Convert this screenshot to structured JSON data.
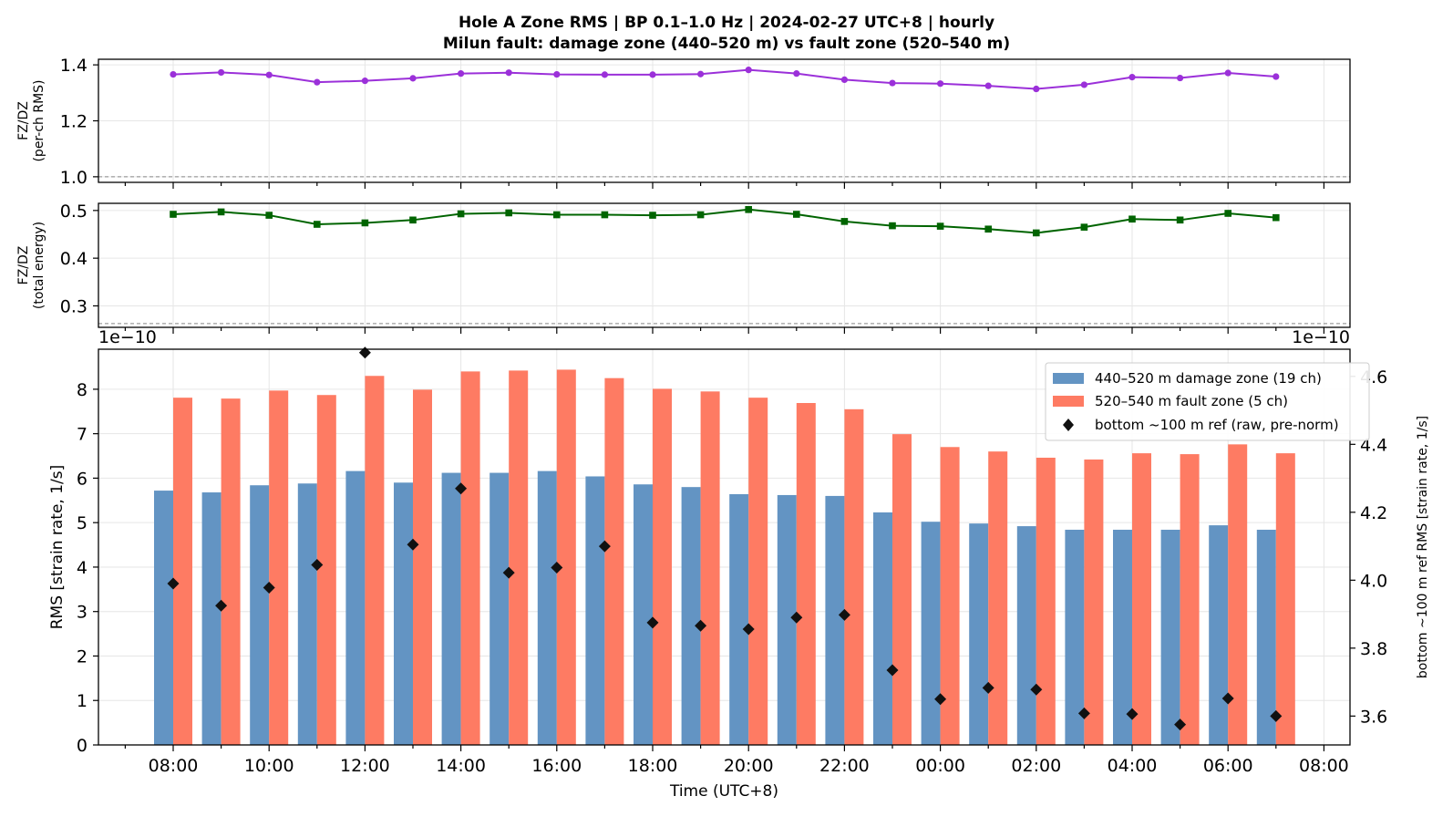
{
  "title_line1": "Hole A Zone RMS  |  BP 0.1–1.0 Hz  |  2024-02-27 UTC+8  |  hourly",
  "title_line2": "Milun fault: damage zone (440–520 m) vs fault zone (520–540 m)",
  "chart_data": [
    {
      "type": "line",
      "ylabel_line1": "FZ/DZ",
      "ylabel_line2": "(per-ch RMS)",
      "ylim": [
        0.98,
        1.42
      ],
      "yticks": [
        1.0,
        1.2,
        1.4
      ],
      "yticklabels": [
        "1.0",
        "1.2",
        "1.4"
      ],
      "reference_line": 1.0,
      "grid": true,
      "series": [
        {
          "color": "#9b30d9",
          "marker": "circle",
          "x": [
            "08:00",
            "09:00",
            "10:00",
            "11:00",
            "12:00",
            "13:00",
            "14:00",
            "15:00",
            "16:00",
            "17:00",
            "18:00",
            "19:00",
            "20:00",
            "21:00",
            "22:00",
            "23:00",
            "00:00",
            "01:00",
            "02:00",
            "03:00",
            "04:00",
            "05:00",
            "06:00",
            "07:00"
          ],
          "values": [
            1.366,
            1.373,
            1.364,
            1.338,
            1.343,
            1.352,
            1.369,
            1.372,
            1.366,
            1.365,
            1.365,
            1.367,
            1.382,
            1.369,
            1.347,
            1.335,
            1.333,
            1.325,
            1.314,
            1.329,
            1.356,
            1.353,
            1.371,
            1.358
          ]
        }
      ]
    },
    {
      "type": "line",
      "ylabel_line1": "FZ/DZ",
      "ylabel_line2": "(total energy)",
      "ylim": [
        0.255,
        0.515
      ],
      "yticks": [
        0.3,
        0.4,
        0.5
      ],
      "yticklabels": [
        "0.3",
        "0.4",
        "0.5"
      ],
      "reference_line": 0.263,
      "grid": true,
      "series": [
        {
          "color": "#006400",
          "marker": "square",
          "x": [
            "08:00",
            "09:00",
            "10:00",
            "11:00",
            "12:00",
            "13:00",
            "14:00",
            "15:00",
            "16:00",
            "17:00",
            "18:00",
            "19:00",
            "20:00",
            "21:00",
            "22:00",
            "23:00",
            "00:00",
            "01:00",
            "02:00",
            "03:00",
            "04:00",
            "05:00",
            "06:00",
            "07:00"
          ],
          "values": [
            0.492,
            0.497,
            0.49,
            0.471,
            0.474,
            0.48,
            0.493,
            0.495,
            0.491,
            0.491,
            0.49,
            0.491,
            0.502,
            0.492,
            0.477,
            0.468,
            0.467,
            0.461,
            0.453,
            0.465,
            0.482,
            0.48,
            0.494,
            0.485
          ]
        }
      ]
    },
    {
      "type": "bar",
      "xlabel": "Time (UTC+8)",
      "ylabel": "RMS  [strain rate, 1/s]",
      "ylabel_right": "bottom ~100 m ref RMS  [strain rate, 1/s]",
      "offset_left": "1e−10",
      "offset_right": "1e−10",
      "ylim": [
        0,
        8.9
      ],
      "yticks": [
        0,
        1,
        2,
        3,
        4,
        5,
        6,
        7,
        8
      ],
      "yticklabels": [
        "0",
        "1",
        "2",
        "3",
        "4",
        "5",
        "6",
        "7",
        "8"
      ],
      "ylim_right": [
        3.515,
        4.68
      ],
      "yticks_right": [
        3.6,
        3.8,
        4.0,
        4.2,
        4.4,
        4.6
      ],
      "yticklabels_right": [
        "3.6",
        "3.8",
        "4.0",
        "4.2",
        "4.4",
        "4.6"
      ],
      "xticklabels": [
        "08:00",
        "10:00",
        "12:00",
        "14:00",
        "16:00",
        "18:00",
        "20:00",
        "22:00",
        "00:00",
        "02:00",
        "04:00",
        "06:00",
        "08:00"
      ],
      "legend_position": "top-right",
      "grid": true,
      "categories": [
        "08:00",
        "09:00",
        "10:00",
        "11:00",
        "12:00",
        "13:00",
        "14:00",
        "15:00",
        "16:00",
        "17:00",
        "18:00",
        "19:00",
        "20:00",
        "21:00",
        "22:00",
        "23:00",
        "00:00",
        "01:00",
        "02:00",
        "03:00",
        "04:00",
        "05:00",
        "06:00",
        "07:00"
      ],
      "series": [
        {
          "name": "440–520 m  damage zone (19 ch)",
          "color": "#6394c3",
          "values": [
            5.72,
            5.68,
            5.84,
            5.88,
            6.16,
            5.9,
            6.12,
            6.12,
            6.16,
            6.04,
            5.86,
            5.8,
            5.64,
            5.62,
            5.6,
            5.23,
            5.02,
            4.98,
            4.92,
            4.84,
            4.84,
            4.84,
            4.94,
            4.84
          ]
        },
        {
          "name": "520–540 m  fault zone (5 ch)",
          "color": "#fe7b63",
          "values": [
            7.81,
            7.79,
            7.97,
            7.87,
            8.3,
            7.99,
            8.4,
            8.42,
            8.44,
            8.25,
            8.01,
            7.95,
            7.81,
            7.69,
            7.55,
            6.99,
            6.7,
            6.6,
            6.46,
            6.42,
            6.56,
            6.54,
            6.76,
            6.56
          ]
        },
        {
          "name": "bottom ~100 m ref (raw, pre-norm)",
          "color": "#111111",
          "marker": "diamond",
          "axis": "right",
          "values": [
            3.99,
            3.925,
            3.978,
            4.045,
            4.67,
            4.105,
            4.27,
            4.022,
            4.037,
            4.1,
            3.875,
            3.866,
            3.856,
            3.89,
            3.898,
            3.735,
            3.65,
            3.683,
            3.678,
            3.608,
            3.606,
            3.575,
            3.652,
            3.6
          ]
        }
      ]
    }
  ]
}
